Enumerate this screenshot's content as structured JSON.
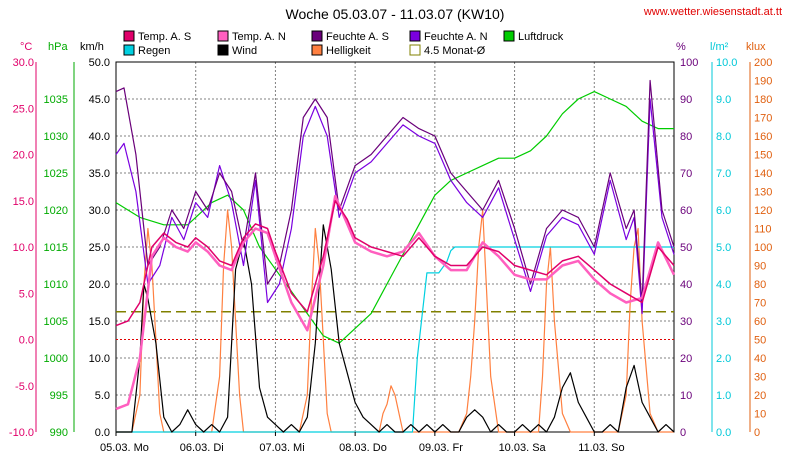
{
  "chart_data": {
    "type": "line",
    "title": "Woche 05.03.07 - 11.03.07 (KW10)",
    "source": "www.wetter.wiesenstadt.at.tt",
    "x_labels": [
      "05.03. Mo",
      "06.03. Di",
      "07.03. Mi",
      "08.03. Do",
      "09.03. Fr",
      "10.03. Sa",
      "11.03. So"
    ],
    "x_range_days": [
      0,
      7
    ],
    "grid": true,
    "legend": [
      {
        "name": "Temp. A. S",
        "color": "#e0006a"
      },
      {
        "name": "Temp. A. N",
        "color": "#ff5fbf"
      },
      {
        "name": "Feuchte A. S",
        "color": "#6a007a"
      },
      {
        "name": "Feuchte A. N",
        "color": "#7a00e0"
      },
      {
        "name": "Luftdruck",
        "color": "#00cc00"
      },
      {
        "name": "Regen",
        "color": "#00d0e0"
      },
      {
        "name": "Wind",
        "color": "#000000"
      },
      {
        "name": "Helligkeit",
        "color": "#ff8040"
      },
      {
        "name": "4.5 Monat-Ø",
        "color": "#808000"
      }
    ],
    "axes": [
      {
        "unit": "°C",
        "color": "#e0006a",
        "min": -10,
        "max": 30,
        "ticks": [
          "30.0",
          "25.0",
          "20.0",
          "15.0",
          "10.0",
          "5.0",
          "0.0",
          "-5.0",
          "-10.0"
        ]
      },
      {
        "unit": "hPa",
        "color": "#00aa00",
        "min": 990,
        "max": 1040,
        "ticks": [
          "1035",
          "1030",
          "1025",
          "1020",
          "1015",
          "1010",
          "1005",
          "1000",
          "995",
          "990"
        ]
      },
      {
        "unit": "km/h",
        "color": "#000000",
        "min": 0,
        "max": 50,
        "ticks": [
          "50.0",
          "45.0",
          "40.0",
          "35.0",
          "30.0",
          "25.0",
          "20.0",
          "15.0",
          "10.0",
          "5.0",
          "0.0"
        ]
      },
      {
        "unit": "%",
        "color": "#6a007a",
        "min": 0,
        "max": 100,
        "ticks": [
          "100",
          "90",
          "80",
          "70",
          "60",
          "50",
          "40",
          "30",
          "20",
          "10",
          "0"
        ]
      },
      {
        "unit": "l/m²",
        "color": "#00c8d8",
        "min": 0,
        "max": 10,
        "ticks": [
          "10.0",
          "9.0",
          "8.0",
          "7.0",
          "6.0",
          "5.0",
          "4.0",
          "3.0",
          "2.0",
          "1.0",
          "0.0"
        ]
      },
      {
        "unit": "klux",
        "color": "#e06010",
        "min": 0,
        "max": 200,
        "ticks": [
          "200",
          "190",
          "180",
          "170",
          "160",
          "150",
          "140",
          "130",
          "120",
          "110",
          "100",
          "90",
          "80",
          "70",
          "60",
          "50",
          "40",
          "30",
          "20",
          "10",
          "0"
        ]
      }
    ],
    "reference_lines": {
      "avg_4_5_month_c": 3.0,
      "freezing_c": 0.0
    },
    "series": [
      {
        "name": "Temp. A. S",
        "axis": "°C",
        "x": [
          0,
          0.15,
          0.3,
          0.45,
          0.6,
          0.75,
          0.9,
          1.0,
          1.15,
          1.3,
          1.45,
          1.6,
          1.75,
          1.9,
          2.0,
          2.2,
          2.4,
          2.6,
          2.75,
          2.9,
          3.0,
          3.2,
          3.4,
          3.6,
          3.8,
          4.0,
          4.2,
          4.4,
          4.6,
          4.8,
          5.0,
          5.2,
          5.4,
          5.6,
          5.8,
          6.0,
          6.2,
          6.4,
          6.6,
          6.8,
          7.0
        ],
        "y": [
          1.5,
          2.0,
          4.0,
          10.0,
          11.5,
          10.5,
          10.0,
          11.0,
          10.0,
          8.5,
          8.0,
          11.0,
          12.5,
          12.0,
          9.5,
          5.0,
          3.0,
          9.0,
          15.0,
          13.0,
          11.0,
          10.0,
          9.5,
          9.0,
          11.0,
          9.0,
          8.0,
          8.0,
          10.0,
          9.5,
          8.0,
          7.5,
          7.0,
          8.5,
          9.0,
          7.5,
          6.0,
          5.0,
          4.0,
          10.0,
          8.0
        ]
      },
      {
        "name": "Temp. A. N",
        "axis": "°C",
        "x": [
          0,
          0.15,
          0.3,
          0.45,
          0.6,
          0.75,
          0.9,
          1.0,
          1.15,
          1.3,
          1.45,
          1.6,
          1.75,
          1.9,
          2.0,
          2.2,
          2.4,
          2.6,
          2.75,
          2.9,
          3.0,
          3.2,
          3.4,
          3.6,
          3.8,
          4.0,
          4.2,
          4.4,
          4.6,
          4.8,
          5.0,
          5.2,
          5.4,
          5.6,
          5.8,
          6.0,
          6.2,
          6.4,
          6.6,
          6.8,
          7.0
        ],
        "y": [
          -7.5,
          -7.0,
          -2.0,
          9.0,
          11.0,
          10.0,
          9.5,
          10.5,
          9.5,
          8.0,
          7.5,
          10.5,
          12.0,
          11.5,
          9.0,
          4.0,
          1.0,
          8.0,
          15.5,
          12.5,
          10.5,
          9.5,
          9.0,
          9.5,
          11.5,
          9.0,
          7.5,
          7.5,
          10.5,
          9.0,
          7.0,
          6.5,
          6.5,
          8.0,
          8.5,
          6.5,
          5.0,
          4.0,
          4.5,
          10.5,
          7.0
        ]
      },
      {
        "name": "Feuchte A. S",
        "axis": "%",
        "x": [
          0,
          0.1,
          0.25,
          0.4,
          0.55,
          0.7,
          0.85,
          1.0,
          1.15,
          1.3,
          1.45,
          1.6,
          1.75,
          1.9,
          2.05,
          2.2,
          2.35,
          2.5,
          2.65,
          2.8,
          3.0,
          3.2,
          3.4,
          3.6,
          3.8,
          4.0,
          4.2,
          4.4,
          4.6,
          4.8,
          5.0,
          5.2,
          5.4,
          5.6,
          5.8,
          6.0,
          6.2,
          6.4,
          6.5,
          6.6,
          6.7,
          6.85,
          7.0
        ],
        "y": [
          92,
          93,
          75,
          45,
          50,
          60,
          55,
          65,
          60,
          70,
          65,
          50,
          70,
          40,
          45,
          60,
          85,
          90,
          85,
          60,
          72,
          75,
          80,
          85,
          82,
          80,
          70,
          65,
          60,
          68,
          55,
          40,
          55,
          60,
          58,
          50,
          70,
          55,
          60,
          35,
          95,
          60,
          50
        ]
      },
      {
        "name": "Feuchte A. N",
        "axis": "%",
        "x": [
          0,
          0.1,
          0.25,
          0.4,
          0.55,
          0.7,
          0.85,
          1.0,
          1.15,
          1.3,
          1.45,
          1.6,
          1.75,
          1.9,
          2.05,
          2.2,
          2.35,
          2.5,
          2.65,
          2.8,
          3.0,
          3.2,
          3.4,
          3.6,
          3.8,
          4.0,
          4.2,
          4.4,
          4.6,
          4.8,
          5.0,
          5.2,
          5.4,
          5.6,
          5.8,
          6.0,
          6.2,
          6.4,
          6.5,
          6.6,
          6.7,
          6.85,
          7.0
        ],
        "y": [
          75,
          78,
          65,
          40,
          45,
          58,
          52,
          62,
          58,
          72,
          62,
          45,
          68,
          35,
          40,
          55,
          80,
          88,
          80,
          58,
          70,
          73,
          78,
          83,
          80,
          78,
          68,
          62,
          58,
          66,
          52,
          38,
          53,
          58,
          56,
          48,
          68,
          52,
          58,
          32,
          90,
          58,
          48
        ]
      },
      {
        "name": "Luftdruck",
        "axis": "hPa",
        "x": [
          0,
          0.3,
          0.6,
          0.9,
          1.2,
          1.4,
          1.6,
          1.8,
          2.0,
          2.2,
          2.4,
          2.6,
          2.8,
          3.0,
          3.2,
          3.4,
          3.6,
          3.8,
          4.0,
          4.2,
          4.4,
          4.6,
          4.8,
          5.0,
          5.2,
          5.4,
          5.6,
          5.8,
          6.0,
          6.2,
          6.4,
          6.6,
          6.8,
          7.0
        ],
        "y": [
          1021,
          1019,
          1018,
          1018,
          1021,
          1022,
          1020,
          1015,
          1012,
          1009,
          1006,
          1003,
          1002,
          1004,
          1006,
          1010,
          1014,
          1018,
          1022,
          1024,
          1025,
          1026,
          1027,
          1027,
          1028,
          1030,
          1033,
          1035,
          1036,
          1035,
          1034,
          1032,
          1031,
          1031
        ]
      },
      {
        "name": "Regen",
        "axis": "l/m²",
        "x": [
          0,
          3.72,
          3.78,
          3.9,
          4.05,
          4.15,
          4.2,
          4.25,
          4.3,
          7.0
        ],
        "y": [
          0,
          0,
          2.0,
          4.3,
          4.3,
          4.6,
          4.9,
          5.0,
          5.0,
          5.0
        ]
      },
      {
        "name": "Wind",
        "axis": "km/h",
        "x": [
          0,
          0.1,
          0.2,
          0.3,
          0.35,
          0.4,
          0.5,
          0.6,
          0.7,
          0.8,
          0.9,
          1.0,
          1.1,
          1.2,
          1.3,
          1.4,
          1.5,
          1.6,
          1.7,
          1.8,
          1.9,
          2.0,
          2.1,
          2.2,
          2.3,
          2.4,
          2.5,
          2.6,
          2.7,
          2.8,
          2.9,
          3.0,
          3.1,
          3.2,
          3.3,
          3.4,
          3.5,
          3.6,
          3.7,
          3.8,
          3.9,
          4.0,
          4.1,
          4.2,
          4.3,
          4.4,
          4.5,
          4.6,
          4.7,
          4.8,
          4.9,
          5.0,
          5.1,
          5.2,
          5.3,
          5.4,
          5.5,
          5.6,
          5.7,
          5.8,
          5.9,
          6.0,
          6.1,
          6.2,
          6.3,
          6.4,
          6.5,
          6.6,
          6.7,
          6.8,
          6.9,
          7.0
        ],
        "y": [
          0,
          0,
          0,
          10,
          20,
          18,
          12,
          2,
          0,
          1,
          3,
          1,
          0,
          1,
          0,
          2,
          22,
          26,
          20,
          6,
          2,
          1,
          0,
          1,
          0,
          2,
          12,
          28,
          22,
          12,
          8,
          4,
          2,
          1,
          0,
          1,
          0,
          0,
          1,
          0,
          1,
          0,
          1,
          0,
          0,
          2,
          3,
          2,
          0,
          1,
          0,
          0,
          1,
          0,
          1,
          0,
          2,
          6,
          8,
          4,
          2,
          0,
          0,
          1,
          0,
          6,
          9,
          4,
          2,
          0,
          1,
          0
        ]
      },
      {
        "name": "Helligkeit",
        "axis": "klux",
        "x": [
          0,
          0.1,
          0.2,
          0.3,
          0.35,
          0.4,
          0.45,
          0.5,
          0.55,
          0.6,
          0.7,
          0.8,
          0.9,
          1.0,
          1.1,
          1.2,
          1.3,
          1.35,
          1.4,
          1.45,
          1.5,
          1.55,
          1.6,
          1.7,
          1.8,
          1.9,
          2.0,
          2.1,
          2.2,
          2.3,
          2.4,
          2.45,
          2.5,
          2.55,
          2.6,
          2.65,
          2.7,
          2.8,
          2.9,
          3.0,
          3.1,
          3.2,
          3.3,
          3.35,
          3.4,
          3.45,
          3.5,
          3.55,
          3.6,
          3.7,
          3.8,
          3.9,
          4.0,
          4.1,
          4.2,
          4.3,
          4.4,
          4.45,
          4.5,
          4.55,
          4.6,
          4.7,
          4.8,
          4.9,
          5.0,
          5.1,
          5.2,
          5.3,
          5.35,
          5.4,
          5.45,
          5.5,
          5.6,
          5.7,
          5.8,
          5.9,
          6.0,
          6.1,
          6.2,
          6.3,
          6.4,
          6.45,
          6.5,
          6.55,
          6.6,
          6.7,
          6.8,
          6.9,
          7.0
        ],
        "y": [
          0,
          0,
          0,
          20,
          80,
          110,
          90,
          50,
          10,
          0,
          0,
          0,
          0,
          0,
          0,
          0,
          30,
          90,
          120,
          100,
          60,
          20,
          0,
          0,
          0,
          0,
          0,
          0,
          0,
          0,
          20,
          70,
          110,
          90,
          50,
          10,
          0,
          0,
          0,
          0,
          0,
          0,
          0,
          10,
          15,
          25,
          20,
          10,
          0,
          0,
          0,
          0,
          0,
          0,
          0,
          0,
          10,
          30,
          60,
          100,
          120,
          30,
          0,
          0,
          0,
          0,
          0,
          0,
          30,
          80,
          100,
          60,
          10,
          0,
          0,
          0,
          0,
          0,
          0,
          0,
          20,
          70,
          100,
          110,
          60,
          10,
          0,
          0,
          0
        ]
      }
    ]
  }
}
